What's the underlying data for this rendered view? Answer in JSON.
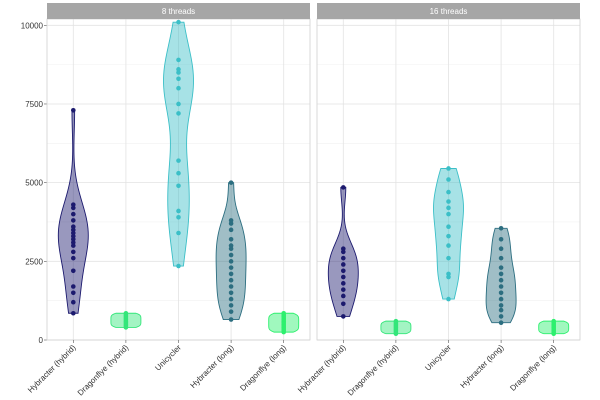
{
  "chart_data": {
    "type": "violin",
    "facet_labels": [
      "8 threads",
      "16 threads"
    ],
    "categories": [
      "Hybracter (hybrid)",
      "Dragonflye (hybrid)",
      "Unicycler",
      "Hybracter (long)",
      "Dragonflye (long)"
    ],
    "category_colors": [
      "#1c1a6e",
      "#33e67a",
      "#3bbfc7",
      "#2c6e80",
      "#2df06e"
    ],
    "ylabel": "",
    "ylim": [
      0,
      10200
    ],
    "yticks": [
      0,
      2500,
      5000,
      7500,
      10000
    ],
    "panels": [
      {
        "label": "8 threads",
        "groups": [
          {
            "name": "Hybracter (hybrid)",
            "min": 850,
            "max": 7300,
            "points": [
              850,
              1200,
              1500,
              1700,
              2200,
              2600,
              2800,
              3000,
              3100,
              3200,
              3300,
              3400,
              3500,
              3600,
              3800,
              4000,
              4200,
              4300,
              7300
            ]
          },
          {
            "name": "Dragonflye (hybrid)",
            "min": 400,
            "max": 850,
            "points": [
              400,
              450,
              500,
              550,
              600,
              650,
              700,
              750,
              800,
              850
            ]
          },
          {
            "name": "Unicycler",
            "min": 2350,
            "max": 10100,
            "points": [
              2350,
              3400,
              3900,
              4100,
              4900,
              5300,
              5700,
              7200,
              7500,
              8000,
              8300,
              8500,
              8600,
              8900,
              10100
            ]
          },
          {
            "name": "Hybracter (long)",
            "min": 650,
            "max": 5000,
            "points": [
              650,
              900,
              1100,
              1300,
              1500,
              1700,
              1900,
              2100,
              2300,
              2500,
              2700,
              2900,
              3000,
              3200,
              3500,
              3700,
              3800,
              5000
            ]
          },
          {
            "name": "Dragonflye (long)",
            "min": 250,
            "max": 850,
            "points": [
              250,
              300,
              350,
              400,
              450,
              500,
              550,
              600,
              650,
              700,
              750,
              800,
              850
            ]
          }
        ]
      },
      {
        "label": "16 threads",
        "groups": [
          {
            "name": "Hybracter (hybrid)",
            "min": 750,
            "max": 4850,
            "points": [
              750,
              1150,
              1400,
              1600,
              1800,
              2000,
              2200,
              2400,
              2600,
              2800,
              2900,
              4850
            ]
          },
          {
            "name": "Dragonflye (hybrid)",
            "min": 200,
            "max": 600,
            "points": [
              200,
              250,
              300,
              350,
              400,
              450,
              500,
              550,
              600
            ]
          },
          {
            "name": "Unicycler",
            "min": 1300,
            "max": 5450,
            "points": [
              1300,
              2000,
              2100,
              2600,
              3000,
              3300,
              3600,
              4000,
              4200,
              4400,
              4700,
              5100,
              5450
            ]
          },
          {
            "name": "Hybracter (long)",
            "min": 550,
            "max": 3550,
            "points": [
              550,
              750,
              950,
              1100,
              1300,
              1500,
              1700,
              1900,
              2100,
              2300,
              2600,
              2900,
              3200,
              3550
            ]
          },
          {
            "name": "Dragonflye (long)",
            "min": 200,
            "max": 600,
            "points": [
              200,
              250,
              300,
              350,
              400,
              450,
              500,
              550,
              600
            ]
          }
        ]
      }
    ]
  }
}
